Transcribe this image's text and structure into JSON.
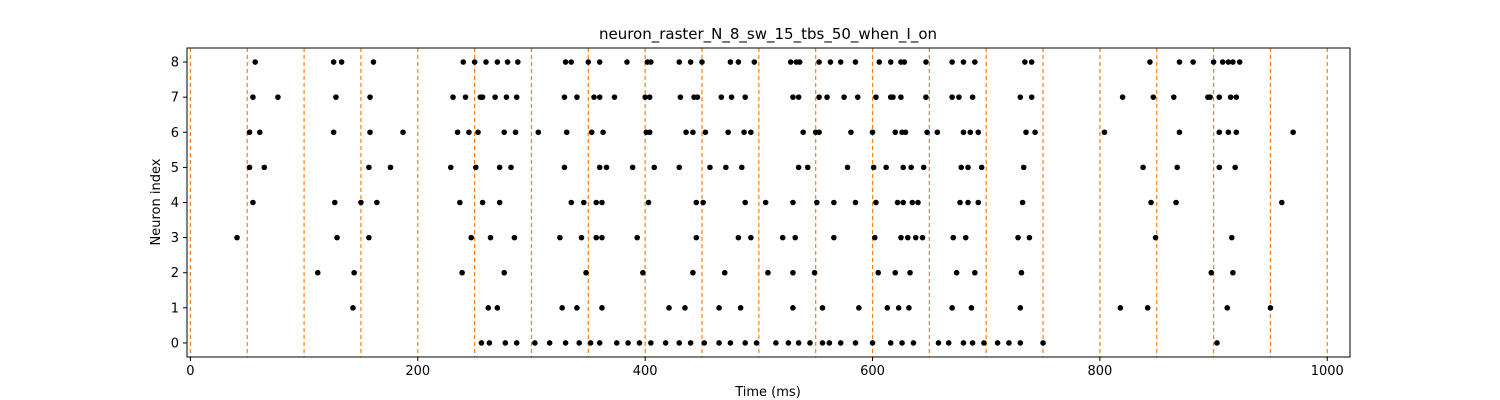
{
  "chart_data": {
    "type": "scatter",
    "title": "neuron_raster_N_8_sw_15_tbs_50_when_I_on",
    "xlabel": "Time (ms)",
    "ylabel": "Neuron index",
    "xlim": [
      -3,
      1020
    ],
    "ylim": [
      -0.4,
      8.4
    ],
    "x_ticks": [
      0,
      200,
      400,
      600,
      800,
      1000
    ],
    "y_ticks": [
      0,
      1,
      2,
      3,
      4,
      5,
      6,
      7,
      8
    ],
    "marker_color": "#000000",
    "vline_color": "#ff7f0e",
    "vlines": [
      0,
      50,
      100,
      150,
      200,
      250,
      300,
      350,
      400,
      450,
      500,
      550,
      600,
      650,
      700,
      750,
      800,
      850,
      900,
      950,
      1000
    ],
    "spikes": [
      {
        "neuron": 8,
        "times": [
          57,
          126,
          133,
          161,
          240,
          250,
          260,
          270,
          279,
          288,
          330,
          335,
          350,
          360,
          384,
          402,
          405,
          430,
          440,
          450,
          475,
          482,
          496,
          528,
          533,
          536,
          553,
          563,
          572,
          585,
          606,
          616,
          625,
          628,
          647,
          670,
          680,
          690,
          734,
          740,
          844,
          870,
          882,
          900,
          908,
          913,
          917,
          923
        ]
      },
      {
        "neuron": 7,
        "times": [
          55,
          77,
          128,
          158,
          231,
          242,
          255,
          257,
          268,
          278,
          287,
          329,
          340,
          355,
          360,
          373,
          400,
          404,
          431,
          443,
          446,
          467,
          476,
          488,
          530,
          535,
          553,
          560,
          575,
          587,
          603,
          616,
          618,
          625,
          647,
          670,
          676,
          688,
          730,
          740,
          820,
          847,
          865,
          895,
          897,
          905,
          915,
          920
        ]
      },
      {
        "neuron": 6,
        "times": [
          52,
          61,
          126,
          158,
          187,
          235,
          245,
          253,
          276,
          286,
          306,
          331,
          353,
          363,
          401,
          404,
          436,
          442,
          453,
          473,
          487,
          493,
          539,
          550,
          553,
          581,
          600,
          620,
          626,
          629,
          648,
          657,
          680,
          686,
          693,
          735,
          743,
          804,
          870,
          905,
          913,
          920,
          970
        ]
      },
      {
        "neuron": 5,
        "times": [
          52,
          65,
          157,
          176,
          229,
          251,
          272,
          282,
          329,
          360,
          366,
          389,
          408,
          430,
          457,
          471,
          485,
          535,
          543,
          578,
          601,
          612,
          627,
          634,
          645,
          678,
          684,
          696,
          733,
          838,
          868,
          905,
          919
        ]
      },
      {
        "neuron": 4,
        "times": [
          55,
          127,
          150,
          164,
          237,
          257,
          272,
          335,
          346,
          357,
          362,
          403,
          445,
          451,
          488,
          506,
          530,
          551,
          566,
          585,
          603,
          622,
          627,
          635,
          640,
          677,
          684,
          693,
          732,
          845,
          867,
          960
        ]
      },
      {
        "neuron": 3,
        "times": [
          41,
          129,
          157,
          247,
          264,
          285,
          325,
          344,
          357,
          362,
          393,
          445,
          482,
          493,
          521,
          532,
          566,
          602,
          625,
          631,
          638,
          644,
          671,
          682,
          728,
          738,
          849,
          916
        ]
      },
      {
        "neuron": 2,
        "times": [
          112,
          144,
          239,
          276,
          348,
          398,
          442,
          470,
          508,
          530,
          549,
          605,
          620,
          633,
          674,
          690,
          731,
          898,
          917
        ]
      },
      {
        "neuron": 1,
        "times": [
          143,
          262,
          270,
          327,
          340,
          362,
          421,
          435,
          465,
          484,
          530,
          556,
          588,
          613,
          623,
          632,
          670,
          687,
          730,
          818,
          842,
          912,
          950
        ]
      },
      {
        "neuron": 0,
        "times": [
          256,
          263,
          277,
          287,
          303,
          316,
          330,
          342,
          352,
          360,
          375,
          385,
          395,
          405,
          418,
          430,
          440,
          452,
          465,
          475,
          488,
          498,
          515,
          526,
          535,
          545,
          556,
          562,
          572,
          585,
          600,
          616,
          626,
          636,
          658,
          667,
          680,
          688,
          698,
          710,
          720,
          730,
          750,
          903
        ]
      }
    ]
  }
}
